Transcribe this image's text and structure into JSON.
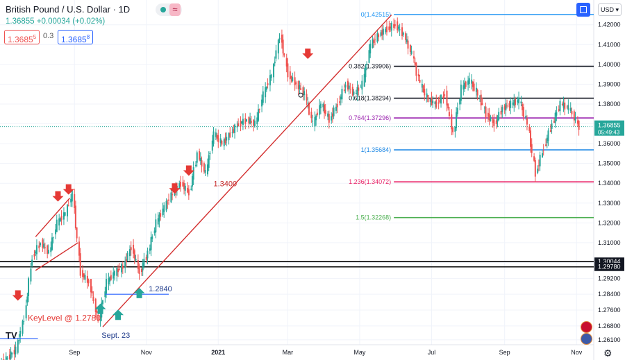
{
  "header": {
    "title": "British Pound / U.S. Dollar · 1D",
    "price": "1.36855",
    "change": "+0.00034 (+0.02%)",
    "sell": "1.3685",
    "sell_sup": "5",
    "spread": "0.3",
    "buy": "1.3685",
    "buy_sup": "8",
    "currency": "USD"
  },
  "icons": {
    "settings": "gear-icon",
    "expand": "expand-icon",
    "logo": "tradingview-logo"
  },
  "colors": {
    "up": "#26a69a",
    "down": "#ef5350",
    "blue": "#2962ff",
    "trend": "#d32f2f"
  },
  "price_axis": {
    "labels": [
      "1.42000",
      "1.41000",
      "1.40000",
      "1.39000",
      "1.38000",
      "1.37000",
      "1.36000",
      "1.35000",
      "1.34000",
      "1.33000",
      "1.32000",
      "1.31000",
      "1.30000",
      "1.29200",
      "1.28400",
      "1.27600",
      "1.26800",
      "1.26100"
    ],
    "current": "1.36855",
    "countdown": "05:49:43",
    "level_a": "1.30044",
    "level_b": "1.29780"
  },
  "time_axis": {
    "labels": [
      "Sep",
      "Nov",
      "2021",
      "Mar",
      "May",
      "Jul",
      "Sep",
      "Nov"
    ]
  },
  "chart_data": {
    "type": "candlestick",
    "instrument": "GBPUSD",
    "timeframe": "1D",
    "x_range": [
      "2020-07-01",
      "2021-11-05"
    ],
    "y_range": [
      1.2585,
      1.4325
    ],
    "fib": [
      {
        "label": "0(1.42515)",
        "value": 1.42515,
        "color": "#2196f3"
      },
      {
        "label": "0.382(1.39906)",
        "value": 1.39906,
        "color": "#131722"
      },
      {
        "label": "0.618(1.38294)",
        "value": 1.38294,
        "color": "#131722"
      },
      {
        "label": "0.764(1.37296)",
        "value": 1.37296,
        "color": "#9c27b0"
      },
      {
        "label": "1(1.35684)",
        "value": 1.35684,
        "color": "#1e88e5"
      },
      {
        "label": "1.236(1.34072)",
        "value": 1.34072,
        "color": "#e91e63"
      },
      {
        "label": "1.5(1.32268)",
        "value": 1.32268,
        "color": "#4caf50"
      }
    ],
    "key_levels": [
      1.30044,
      1.2978
    ],
    "annotations": [
      {
        "text": "KeyLevel @ 1.2780",
        "color": "#e53935"
      },
      {
        "text": "Sept. 23",
        "color": "#1e3a8a"
      },
      {
        "text": "1.2840",
        "color": "#1e3a8a"
      },
      {
        "text": "1.3400",
        "color": "#c62828"
      }
    ],
    "close_series": [
      {
        "date": "2020-07-01",
        "close": 1.248
      },
      {
        "date": "2020-07-15",
        "close": 1.256
      },
      {
        "date": "2020-07-22",
        "close": 1.272
      },
      {
        "date": "2020-07-29",
        "close": 1.303
      },
      {
        "date": "2020-08-05",
        "close": 1.31
      },
      {
        "date": "2020-08-12",
        "close": 1.305
      },
      {
        "date": "2020-08-19",
        "close": 1.32
      },
      {
        "date": "2020-08-26",
        "close": 1.325
      },
      {
        "date": "2020-09-01",
        "close": 1.335
      },
      {
        "date": "2020-09-08",
        "close": 1.295
      },
      {
        "date": "2020-09-15",
        "close": 1.29
      },
      {
        "date": "2020-09-23",
        "close": 1.27
      },
      {
        "date": "2020-09-30",
        "close": 1.29
      },
      {
        "date": "2020-10-07",
        "close": 1.295
      },
      {
        "date": "2020-10-14",
        "close": 1.298
      },
      {
        "date": "2020-10-21",
        "close": 1.308
      },
      {
        "date": "2020-10-28",
        "close": 1.295
      },
      {
        "date": "2020-11-04",
        "close": 1.305
      },
      {
        "date": "2020-11-11",
        "close": 1.32
      },
      {
        "date": "2020-11-18",
        "close": 1.328
      },
      {
        "date": "2020-11-25",
        "close": 1.335
      },
      {
        "date": "2020-12-02",
        "close": 1.34
      },
      {
        "date": "2020-12-09",
        "close": 1.335
      },
      {
        "date": "2020-12-16",
        "close": 1.355
      },
      {
        "date": "2020-12-23",
        "close": 1.345
      },
      {
        "date": "2020-12-30",
        "close": 1.365
      },
      {
        "date": "2021-01-06",
        "close": 1.36
      },
      {
        "date": "2021-01-13",
        "close": 1.365
      },
      {
        "date": "2021-01-20",
        "close": 1.37
      },
      {
        "date": "2021-01-27",
        "close": 1.372
      },
      {
        "date": "2021-02-03",
        "close": 1.37
      },
      {
        "date": "2021-02-10",
        "close": 1.385
      },
      {
        "date": "2021-02-17",
        "close": 1.395
      },
      {
        "date": "2021-02-24",
        "close": 1.415
      },
      {
        "date": "2021-03-03",
        "close": 1.395
      },
      {
        "date": "2021-03-10",
        "close": 1.39
      },
      {
        "date": "2021-03-17",
        "close": 1.385
      },
      {
        "date": "2021-03-24",
        "close": 1.37
      },
      {
        "date": "2021-03-31",
        "close": 1.38
      },
      {
        "date": "2021-04-07",
        "close": 1.372
      },
      {
        "date": "2021-04-14",
        "close": 1.38
      },
      {
        "date": "2021-04-21",
        "close": 1.39
      },
      {
        "date": "2021-04-28",
        "close": 1.385
      },
      {
        "date": "2021-05-05",
        "close": 1.39
      },
      {
        "date": "2021-05-12",
        "close": 1.41
      },
      {
        "date": "2021-05-19",
        "close": 1.415
      },
      {
        "date": "2021-05-26",
        "close": 1.418
      },
      {
        "date": "2021-06-02",
        "close": 1.42
      },
      {
        "date": "2021-06-09",
        "close": 1.415
      },
      {
        "date": "2021-06-16",
        "close": 1.405
      },
      {
        "date": "2021-06-23",
        "close": 1.39
      },
      {
        "date": "2021-06-30",
        "close": 1.382
      },
      {
        "date": "2021-07-07",
        "close": 1.38
      },
      {
        "date": "2021-07-14",
        "close": 1.385
      },
      {
        "date": "2021-07-21",
        "close": 1.365
      },
      {
        "date": "2021-07-28",
        "close": 1.388
      },
      {
        "date": "2021-08-04",
        "close": 1.392
      },
      {
        "date": "2021-08-11",
        "close": 1.385
      },
      {
        "date": "2021-08-18",
        "close": 1.375
      },
      {
        "date": "2021-08-25",
        "close": 1.37
      },
      {
        "date": "2021-09-01",
        "close": 1.378
      },
      {
        "date": "2021-09-08",
        "close": 1.38
      },
      {
        "date": "2021-09-15",
        "close": 1.382
      },
      {
        "date": "2021-09-22",
        "close": 1.37
      },
      {
        "date": "2021-09-29",
        "close": 1.345
      },
      {
        "date": "2021-10-06",
        "close": 1.358
      },
      {
        "date": "2021-10-13",
        "close": 1.37
      },
      {
        "date": "2021-10-20",
        "close": 1.38
      },
      {
        "date": "2021-10-27",
        "close": 1.378
      },
      {
        "date": "2021-11-05",
        "close": 1.3685
      }
    ]
  }
}
